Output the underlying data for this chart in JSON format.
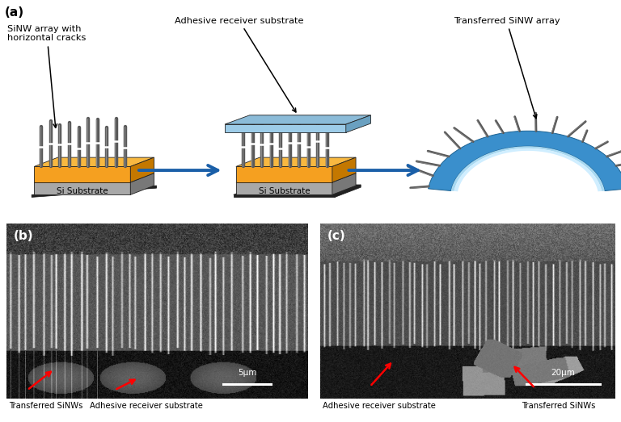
{
  "fig_width": 7.68,
  "fig_height": 5.23,
  "dpi": 100,
  "bg_color": "#ffffff",
  "label_a": "(a)",
  "label_b": "(b)",
  "label_c": "(c)",
  "text_sinw_array": "SiNW array with\nhorizontal cracks",
  "text_adhesive_top": "Adhesive receiver substrate",
  "text_transferred": "Transferred SiNW array",
  "text_si_substrate1": "Si Substrate",
  "text_si_substrate2": "Si Substrate",
  "text_b_sinws": "Transferred SiNWs",
  "text_b_adhesive": "Adhesive receiver substrate",
  "text_c_adhesive": "Adhesive receiver substrate",
  "text_c_sinws": "Transferred SiNWs",
  "scale_b": "5μm",
  "scale_c": "20μm",
  "orange_top": "#F5A020",
  "orange_side": "#C47800",
  "orange_top_face": "#F8B840",
  "gray_sub_front": "#A8A8A8",
  "gray_sub_side": "#787878",
  "gray_sub_top": "#C8C8C8",
  "black_sub": "#202020",
  "blue_plate_top": "#8BBBD8",
  "blue_plate_front": "#9DCCE8",
  "blue_plate_side": "#6AA0C0",
  "blue_tape_outer": "#3A8FCC",
  "blue_tape_inner": "#5BB0E8",
  "blue_tape_light": "#A8D8F0",
  "blue_tape_white": "#D0EEFF",
  "arrow_blue": "#1A5FA8",
  "wire_color": "#585858",
  "wire_light": "#888888"
}
